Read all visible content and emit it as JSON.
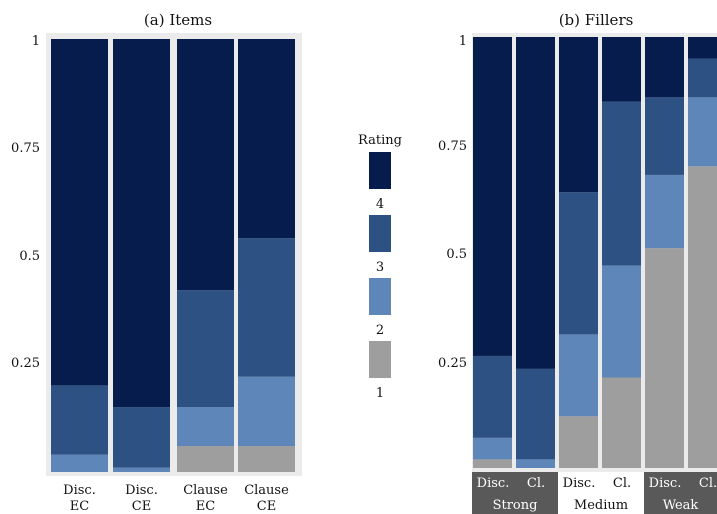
{
  "colors": {
    "rating_4": "#051c4c",
    "rating_3": "#2e5183",
    "rating_2": "#5f86b8",
    "rating_1": "#9e9e9e",
    "panel_bg": "#ebebeb",
    "strip_dark": "#595959",
    "strip_light": "#ffffff"
  },
  "chart_data": [
    {
      "type": "bar",
      "stacked": true,
      "title": "(a) Items",
      "yticks": [
        "0.25",
        "0.5",
        "0.75",
        "1"
      ],
      "ylim": [
        0,
        1
      ],
      "categories": [
        "Disc.\nEC",
        "Disc.\nCE",
        "Clause\nEC",
        "Clause\nCE"
      ],
      "series": [
        {
          "name": "1",
          "values": [
            0.0,
            0.0,
            0.06,
            0.06
          ]
        },
        {
          "name": "2",
          "values": [
            0.04,
            0.01,
            0.09,
            0.16
          ]
        },
        {
          "name": "3",
          "values": [
            0.16,
            0.14,
            0.27,
            0.32
          ]
        },
        {
          "name": "4",
          "values": [
            0.8,
            0.85,
            0.58,
            0.46
          ]
        }
      ]
    },
    {
      "type": "bar",
      "stacked": true,
      "title": "(b) Fillers",
      "yticks": [
        "0.25",
        "0.5",
        "0.75",
        "1"
      ],
      "ylim": [
        0,
        1
      ],
      "categories": [
        "Disc.",
        "Cl.",
        "Disc.",
        "Cl.",
        "Disc.",
        "Cl."
      ],
      "groups": [
        "Strong",
        "Medium",
        "Weak"
      ],
      "series": [
        {
          "name": "1",
          "values": [
            0.02,
            0.0,
            0.12,
            0.21,
            0.51,
            0.7
          ]
        },
        {
          "name": "2",
          "values": [
            0.05,
            0.02,
            0.19,
            0.26,
            0.17,
            0.16
          ]
        },
        {
          "name": "3",
          "values": [
            0.19,
            0.21,
            0.33,
            0.38,
            0.18,
            0.09
          ]
        },
        {
          "name": "4",
          "values": [
            0.74,
            0.77,
            0.36,
            0.15,
            0.14,
            0.05
          ]
        }
      ]
    }
  ],
  "legend": {
    "title": "Rating",
    "entries": [
      "4",
      "3",
      "2",
      "1"
    ]
  }
}
